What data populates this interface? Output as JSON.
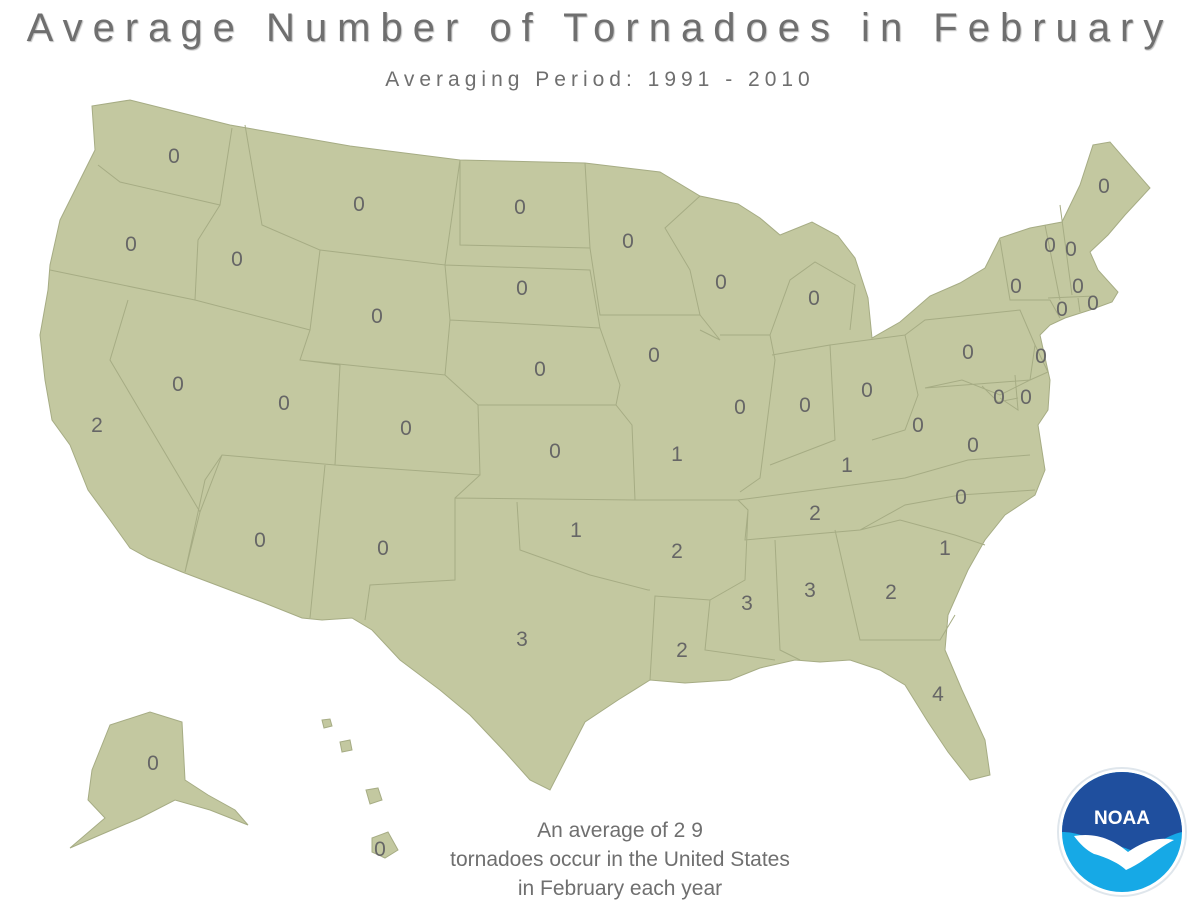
{
  "title": "Average Number of Tornadoes in February",
  "subtitle": "Averaging Period:  1991 - 2010",
  "colors": {
    "land": "#c3c8a0",
    "border": "#a6ac84",
    "text": "#666666",
    "noaa_blue": "#1f4f9e",
    "noaa_sky": "#16a9e6"
  },
  "state_values": [
    {
      "state": "WA",
      "value": "0"
    },
    {
      "state": "OR",
      "value": "0"
    },
    {
      "state": "CA",
      "value": "2"
    },
    {
      "state": "ID",
      "value": "0"
    },
    {
      "state": "NV",
      "value": "0"
    },
    {
      "state": "MT",
      "value": "0"
    },
    {
      "state": "WY",
      "value": "0"
    },
    {
      "state": "UT",
      "value": "0"
    },
    {
      "state": "AZ",
      "value": "0"
    },
    {
      "state": "CO",
      "value": "0"
    },
    {
      "state": "NM",
      "value": "0"
    },
    {
      "state": "ND",
      "value": "0"
    },
    {
      "state": "SD",
      "value": "0"
    },
    {
      "state": "NE",
      "value": "0"
    },
    {
      "state": "KS",
      "value": "0"
    },
    {
      "state": "OK",
      "value": "1"
    },
    {
      "state": "TX",
      "value": "3"
    },
    {
      "state": "MN",
      "value": "0"
    },
    {
      "state": "IA",
      "value": "0"
    },
    {
      "state": "MO",
      "value": "1"
    },
    {
      "state": "AR",
      "value": "2"
    },
    {
      "state": "LA",
      "value": "2"
    },
    {
      "state": "WI",
      "value": "0"
    },
    {
      "state": "IL",
      "value": "0"
    },
    {
      "state": "MI",
      "value": "0"
    },
    {
      "state": "IN",
      "value": "0"
    },
    {
      "state": "OH",
      "value": "0"
    },
    {
      "state": "KY",
      "value": "1"
    },
    {
      "state": "TN",
      "value": "2"
    },
    {
      "state": "MS",
      "value": "3"
    },
    {
      "state": "AL",
      "value": "3"
    },
    {
      "state": "GA",
      "value": "2"
    },
    {
      "state": "FL",
      "value": "4"
    },
    {
      "state": "SC",
      "value": "1"
    },
    {
      "state": "NC",
      "value": "0"
    },
    {
      "state": "VA",
      "value": "0"
    },
    {
      "state": "WV",
      "value": "0"
    },
    {
      "state": "PA",
      "value": "0"
    },
    {
      "state": "NY",
      "value": "0"
    },
    {
      "state": "MD",
      "value": "0"
    },
    {
      "state": "DE",
      "value": "0"
    },
    {
      "state": "NJ",
      "value": "0"
    },
    {
      "state": "VT",
      "value": "0"
    },
    {
      "state": "NH",
      "value": "0"
    },
    {
      "state": "MA",
      "value": "0"
    },
    {
      "state": "CT",
      "value": "0"
    },
    {
      "state": "RI",
      "value": "0"
    },
    {
      "state": "ME",
      "value": "0"
    },
    {
      "state": "AK",
      "value": "0"
    },
    {
      "state": "HI",
      "value": "0"
    }
  ],
  "footer": {
    "line1": "An average of 2 9",
    "line2": "tornadoes occur in the United States",
    "line3": "in February each year"
  },
  "logo": {
    "text": "NOAA"
  }
}
